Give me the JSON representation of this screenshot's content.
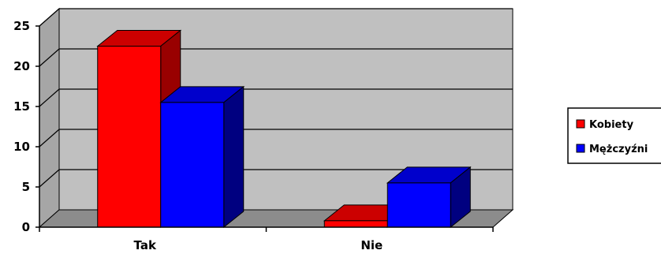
{
  "chart_data": {
    "type": "bar",
    "categories": [
      "Tak",
      "Nie"
    ],
    "series": [
      {
        "name": "Kobiety",
        "values": [
          22.5,
          0.8
        ],
        "color": "#ff0000",
        "side_color": "#990000",
        "top_color": "#cc0000"
      },
      {
        "name": "Mężczyźni",
        "values": [
          15.5,
          5.5
        ],
        "color": "#0000ff",
        "side_color": "#000080",
        "top_color": "#0000cc"
      }
    ],
    "ylim": [
      0,
      25
    ],
    "yticks": [
      "0",
      "5",
      "10",
      "15",
      "20",
      "25"
    ],
    "grid": true,
    "legend_position": "right",
    "wall_color": "#c0c0c0",
    "floor_color": "#8c8c8c"
  }
}
